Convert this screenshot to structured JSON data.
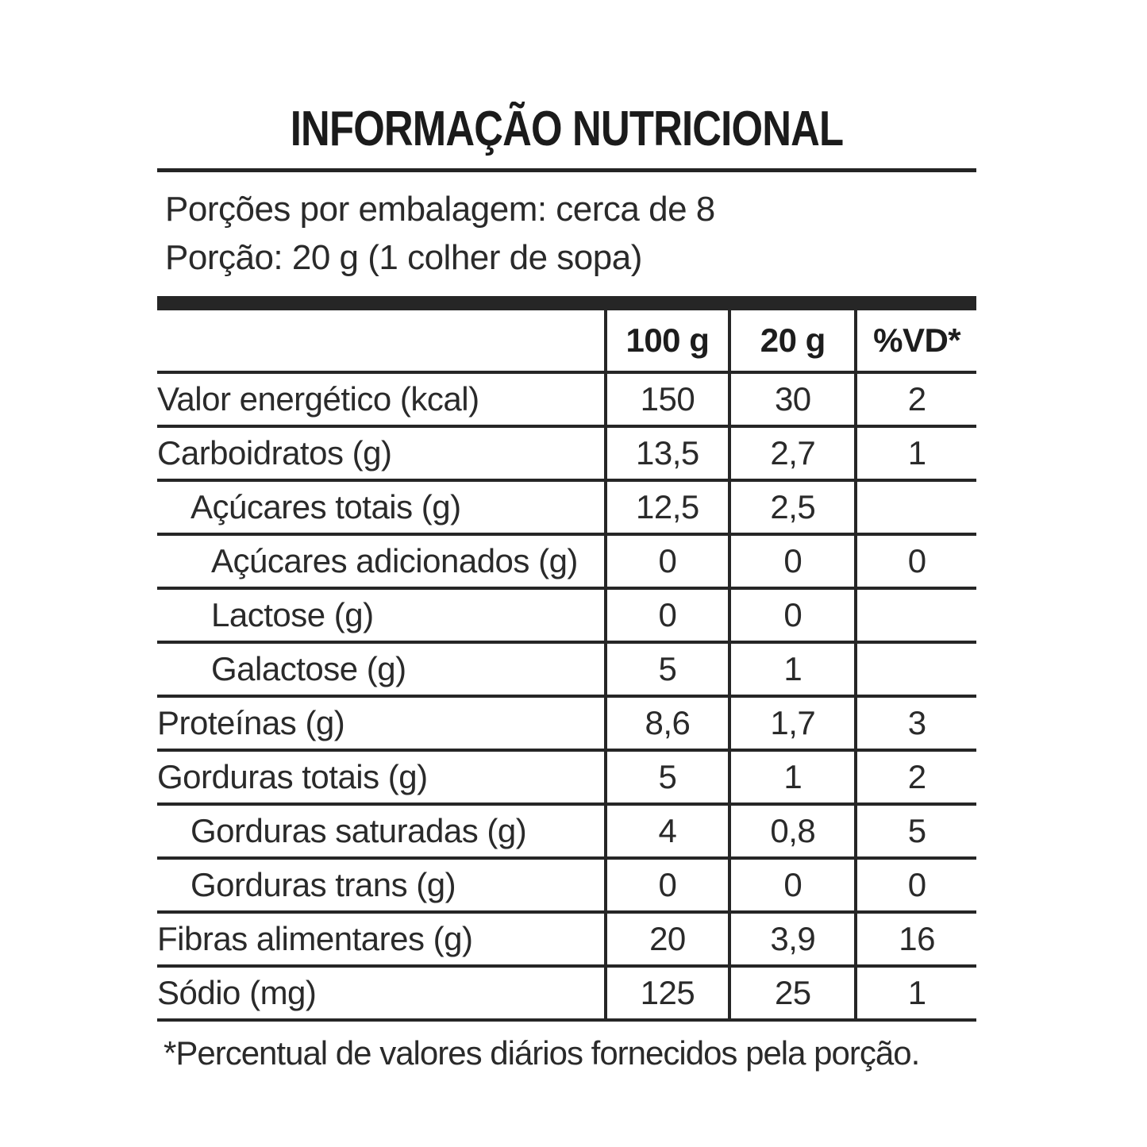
{
  "title": "INFORMAÇÃO NUTRICIONAL",
  "serving_info": {
    "portions_per_package": "Porções por embalagem: cerca de 8",
    "portion_size": "Porção: 20 g (1 colher de sopa)"
  },
  "table": {
    "columns": [
      "100 g",
      "20 g",
      "%VD*"
    ],
    "rows": [
      {
        "label": "Valor energético (kcal)",
        "indent": 0,
        "per100g": "150",
        "per20g": "30",
        "vd": "2"
      },
      {
        "label": "Carboidratos (g)",
        "indent": 0,
        "per100g": "13,5",
        "per20g": "2,7",
        "vd": "1"
      },
      {
        "label": "Açúcares totais (g)",
        "indent": 1,
        "per100g": "12,5",
        "per20g": "2,5",
        "vd": ""
      },
      {
        "label": "Açúcares adicionados (g)",
        "indent": 2,
        "per100g": "0",
        "per20g": "0",
        "vd": "0"
      },
      {
        "label": "Lactose (g)",
        "indent": 2,
        "per100g": "0",
        "per20g": "0",
        "vd": ""
      },
      {
        "label": "Galactose (g)",
        "indent": 2,
        "per100g": "5",
        "per20g": "1",
        "vd": ""
      },
      {
        "label": "Proteínas (g)",
        "indent": 0,
        "per100g": "8,6",
        "per20g": "1,7",
        "vd": "3"
      },
      {
        "label": "Gorduras totais (g)",
        "indent": 0,
        "per100g": "5",
        "per20g": "1",
        "vd": "2"
      },
      {
        "label": "Gorduras saturadas (g)",
        "indent": 1,
        "per100g": "4",
        "per20g": "0,8",
        "vd": "5"
      },
      {
        "label": "Gorduras trans (g)",
        "indent": 1,
        "per100g": "0",
        "per20g": "0",
        "vd": "0"
      },
      {
        "label": "Fibras alimentares (g)",
        "indent": 0,
        "per100g": "20",
        "per20g": "3,9",
        "vd": "16"
      },
      {
        "label": "Sódio (mg)",
        "indent": 0,
        "per100g": "125",
        "per20g": "25",
        "vd": "1"
      }
    ]
  },
  "footnote": "*Percentual de valores diários fornecidos pela porção.",
  "colors": {
    "ink": "#262626",
    "background": "#ffffff"
  }
}
